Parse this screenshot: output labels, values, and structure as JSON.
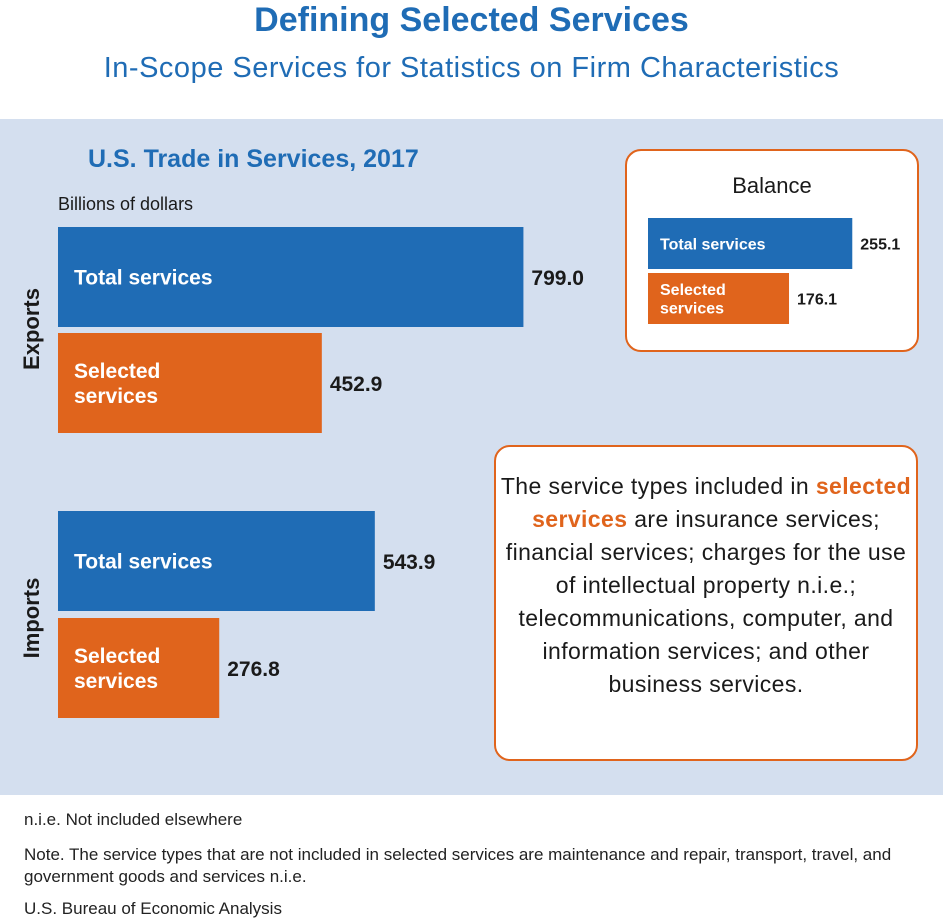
{
  "header": {
    "title": "Defining Selected Services",
    "subtitle": "In-Scope Services for Statistics on Firm Characteristics"
  },
  "chart_data": [
    {
      "type": "bar",
      "orientation": "horizontal",
      "title": "U.S. Trade in Services, 2017",
      "units": "Billions of dollars",
      "groups": [
        {
          "label": "Exports",
          "bars": [
            {
              "label": "Total services",
              "value": 799.0,
              "display": "799.0"
            },
            {
              "label": "Selected services",
              "value": 452.9,
              "display": "452.9"
            }
          ]
        },
        {
          "label": "Imports",
          "bars": [
            {
              "label": "Total services",
              "value": 543.9,
              "display": "543.9"
            },
            {
              "label": "Selected services",
              "value": 276.8,
              "display": "276.8"
            }
          ]
        }
      ]
    },
    {
      "type": "bar",
      "orientation": "horizontal",
      "title": "Balance",
      "bars": [
        {
          "label": "Total services",
          "value": 255.1,
          "display": "255.1"
        },
        {
          "label": "Selected services",
          "value": 176.1,
          "display": "176.1"
        }
      ]
    }
  ],
  "colors": {
    "total": "#1f6cb5",
    "selected": "#e0641c",
    "panel": "#d4dfef",
    "title": "#1f6cb5"
  },
  "note_box": {
    "lead": "The service types included in",
    "emphasis": "selected services",
    "rest": "are insurance services; financial services; charges for the use of intellectual property n.i.e.; telecommunications, computer, and information services; and other business services."
  },
  "footer": {
    "abbrev": "n.i.e. Not included elsewhere",
    "note": "Note. The service types that are not included in selected services are maintenance and repair, transport, travel, and government goods and services n.i.e.",
    "source": "U.S. Bureau of Economic Analysis"
  }
}
